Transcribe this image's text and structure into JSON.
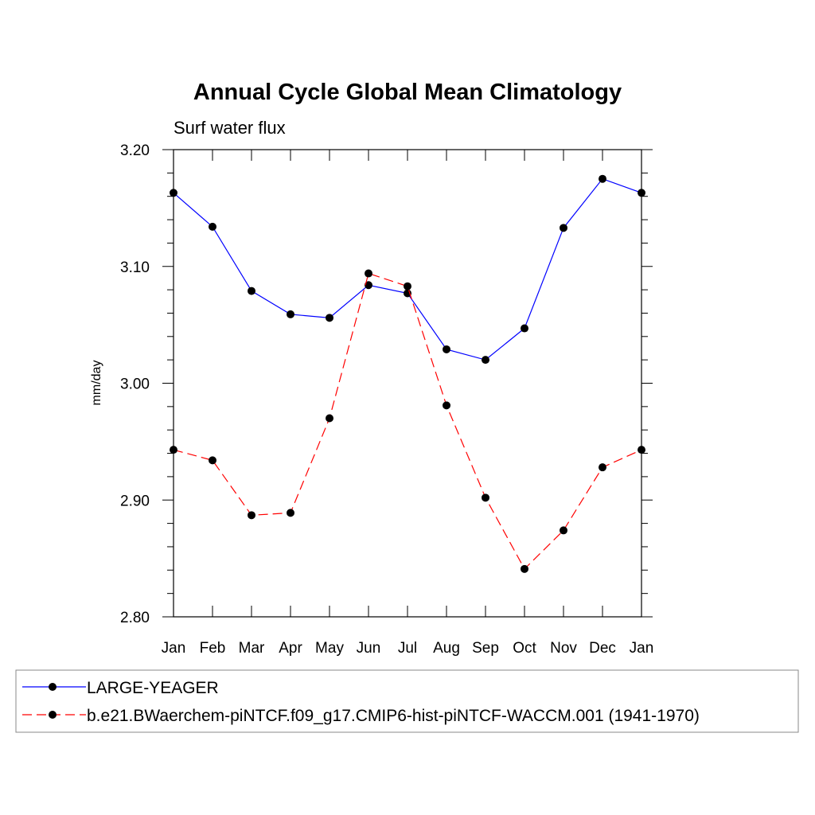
{
  "chart_data": {
    "type": "line",
    "title": "Annual Cycle Global Mean Climatology",
    "subtitle": "Surf water flux",
    "xlabel": "",
    "ylabel": "mm/day",
    "categories": [
      "Jan",
      "Feb",
      "Mar",
      "Apr",
      "May",
      "Jun",
      "Jul",
      "Aug",
      "Sep",
      "Oct",
      "Nov",
      "Dec",
      "Jan"
    ],
    "ylim": [
      2.8,
      3.2
    ],
    "yticks": [
      "2.80",
      "2.90",
      "3.00",
      "3.10",
      "3.20"
    ],
    "grid": false,
    "legend_position": "bottom",
    "series": [
      {
        "name": "LARGE-YEAGER",
        "color": "#0000ff",
        "dash": "solid",
        "values": [
          3.163,
          3.134,
          3.079,
          3.059,
          3.056,
          3.084,
          3.077,
          3.029,
          3.02,
          3.047,
          3.133,
          3.175,
          3.163
        ]
      },
      {
        "name": "b.e21.BWaerchem-piNTCF.f09_g17.CMIP6-hist-piNTCF-WACCM.001 (1941-1970)",
        "color": "#ff0000",
        "dash": "dashed",
        "values": [
          2.943,
          2.934,
          2.887,
          2.889,
          2.97,
          3.094,
          3.083,
          2.981,
          2.902,
          2.841,
          2.874,
          2.928,
          2.943
        ]
      }
    ]
  }
}
